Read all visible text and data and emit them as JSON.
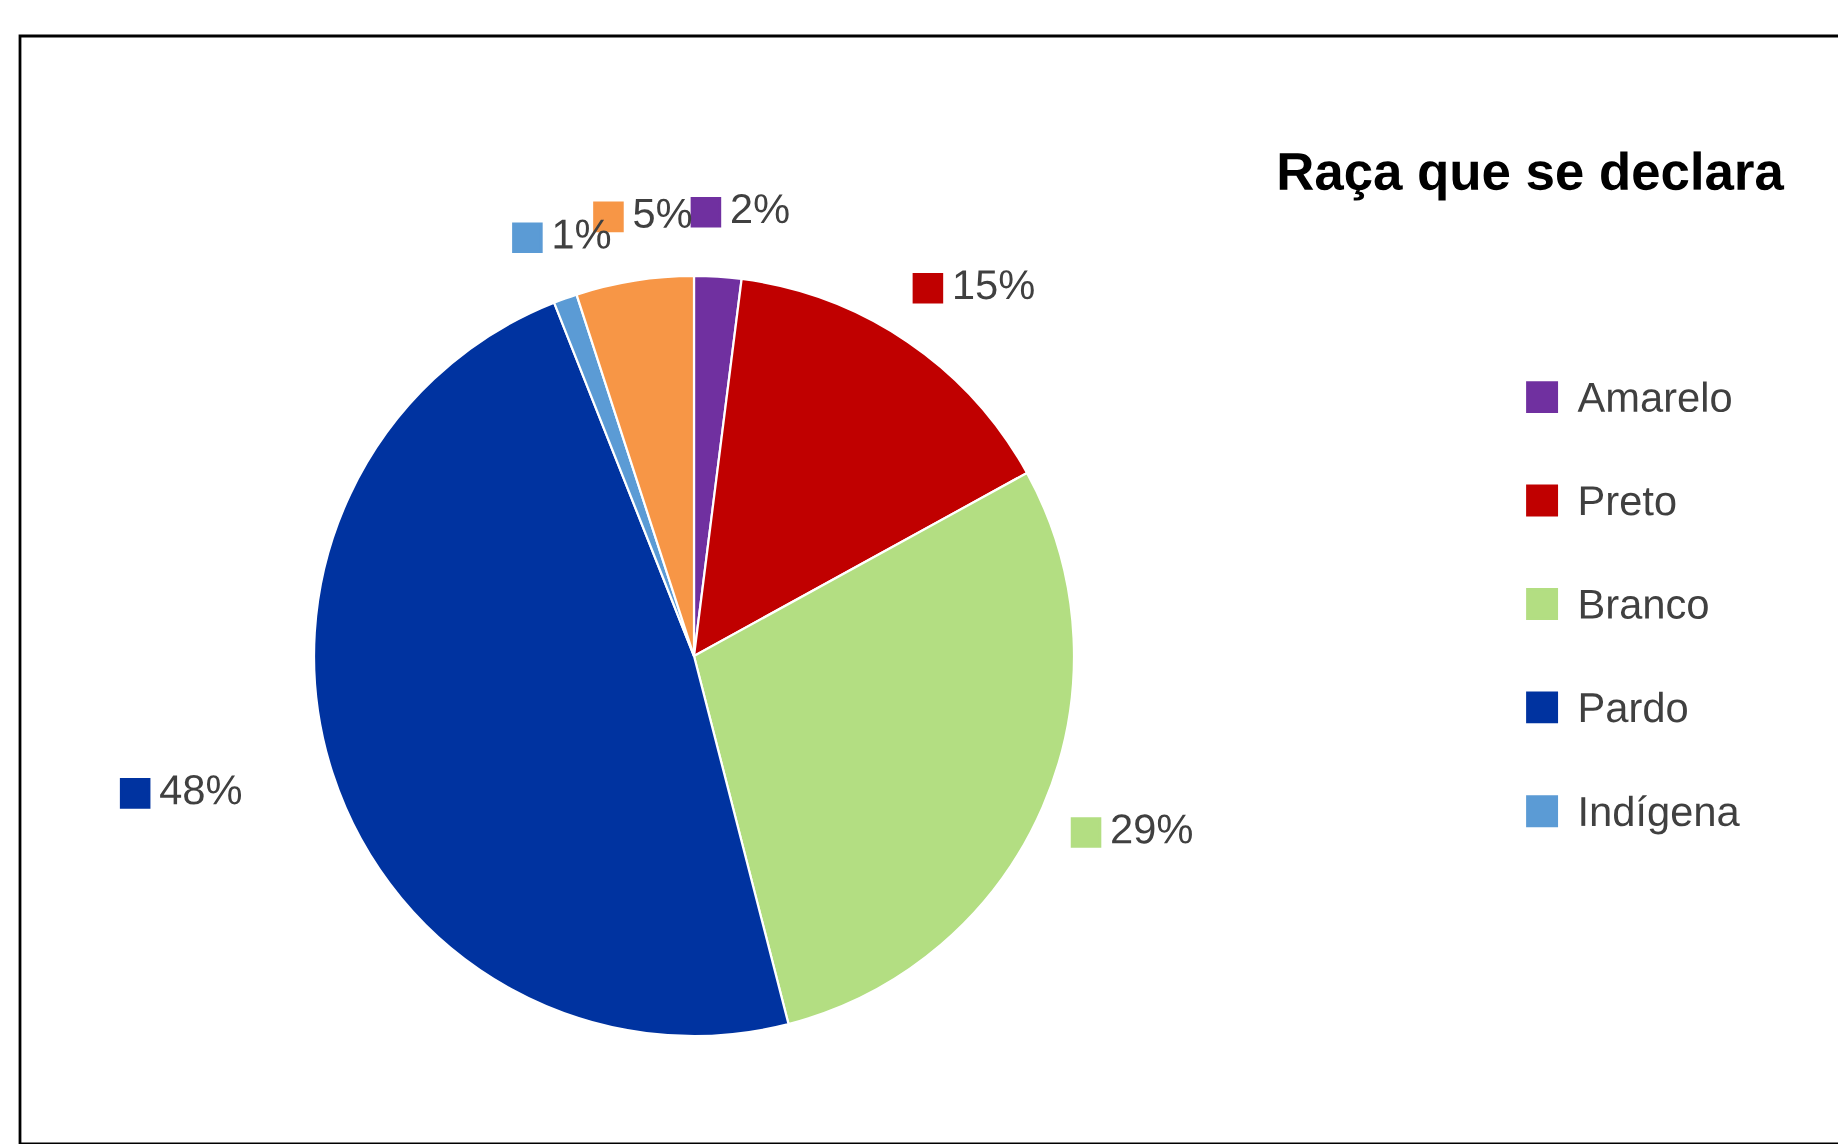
{
  "chart_data": {
    "type": "pie",
    "title": "Raça que se declara",
    "categories": [
      "Amarelo",
      "Preto",
      "Branco",
      "Pardo",
      "Indígena",
      null
    ],
    "values": [
      2,
      15,
      29,
      48,
      1,
      5
    ],
    "colors": [
      "#7030a0",
      "#c00000",
      "#b3de82",
      "#0033a0",
      "#5b9bd5",
      "#f79646"
    ],
    "value_labels": [
      "2%",
      "15%",
      "29%",
      "48%",
      "1%",
      "5%"
    ],
    "legend": "right"
  }
}
